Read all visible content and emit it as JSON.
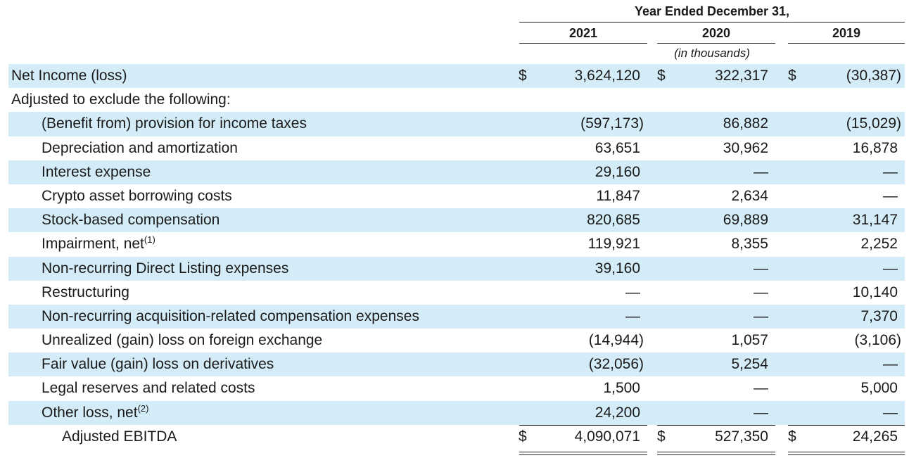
{
  "header": {
    "period": "Year Ended December 31,",
    "years": [
      "2021",
      "2020",
      "2019"
    ],
    "unit": "(in thousands)"
  },
  "rows": [
    {
      "label": "Net Income (loss)",
      "indent": 0,
      "dollar": true,
      "values": [
        "3,624,120",
        "322,317",
        "(30,387)"
      ]
    },
    {
      "label": "Adjusted to exclude the following:",
      "indent": 0,
      "dollar": false,
      "values": [
        "",
        "",
        ""
      ]
    },
    {
      "label": "(Benefit from) provision for income taxes",
      "indent": 1,
      "dollar": false,
      "values": [
        "(597,173)",
        "86,882",
        "(15,029)"
      ]
    },
    {
      "label": "Depreciation and amortization",
      "indent": 1,
      "dollar": false,
      "values": [
        "63,651",
        "30,962",
        "16,878"
      ]
    },
    {
      "label": "Interest expense",
      "indent": 1,
      "dollar": false,
      "values": [
        "29,160",
        "—",
        "—"
      ]
    },
    {
      "label": "Crypto asset borrowing costs",
      "indent": 1,
      "dollar": false,
      "values": [
        "11,847",
        "2,634",
        "—"
      ]
    },
    {
      "label": "Stock-based compensation",
      "indent": 1,
      "dollar": false,
      "values": [
        "820,685",
        "69,889",
        "31,147"
      ]
    },
    {
      "label": "Impairment, net",
      "note": "(1)",
      "indent": 1,
      "dollar": false,
      "values": [
        "119,921",
        "8,355",
        "2,252"
      ]
    },
    {
      "label": "Non-recurring Direct Listing expenses",
      "indent": 1,
      "dollar": false,
      "values": [
        "39,160",
        "—",
        "—"
      ]
    },
    {
      "label": "Restructuring",
      "indent": 1,
      "dollar": false,
      "values": [
        "—",
        "—",
        "10,140"
      ]
    },
    {
      "label": "Non-recurring acquisition-related compensation expenses",
      "indent": 1,
      "dollar": false,
      "values": [
        "—",
        "—",
        "7,370"
      ]
    },
    {
      "label": "Unrealized (gain) loss on foreign exchange",
      "indent": 1,
      "dollar": false,
      "values": [
        "(14,944)",
        "1,057",
        "(3,106)"
      ]
    },
    {
      "label": "Fair value (gain) loss on derivatives",
      "indent": 1,
      "dollar": false,
      "values": [
        "(32,056)",
        "5,254",
        "—"
      ]
    },
    {
      "label": "Legal reserves and related costs",
      "indent": 1,
      "dollar": false,
      "values": [
        "1,500",
        "—",
        "5,000"
      ]
    },
    {
      "label": "Other loss, net",
      "note": "(2)",
      "indent": 1,
      "dollar": false,
      "values": [
        "24,200",
        "—",
        "—"
      ]
    },
    {
      "label": "Adjusted EBITDA",
      "indent": 2,
      "dollar": true,
      "values": [
        "4,090,071",
        "527,350",
        "24,265"
      ]
    }
  ],
  "currency_symbol": "$",
  "colors": {
    "shade": "#d4ecf7",
    "text": "#1a1a1a"
  }
}
